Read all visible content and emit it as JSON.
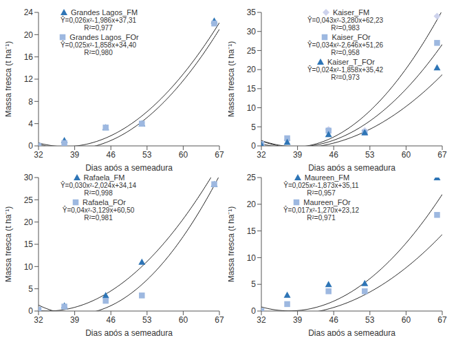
{
  "chart_data": [
    {
      "type": "scatter",
      "x_label": "Dias após a semeadura",
      "y_label": "Massa fresca (t ha⁻¹)",
      "xlim": [
        32,
        67
      ],
      "xticks": [
        32,
        39,
        46,
        53,
        60,
        67
      ],
      "ylim": [
        0,
        24
      ],
      "yticks": [
        0,
        4,
        8,
        12,
        16,
        20,
        24
      ],
      "legend": "upper left",
      "series": [
        {
          "name": "Grandes Lagos_FM",
          "color": "#2e75b6",
          "marker": "triangle",
          "x": [
            32,
            37,
            45,
            52,
            66
          ],
          "values": [
            0,
            1,
            3.3,
            4,
            22.5
          ],
          "equation": "Ŷ=0,026x²-1,986x+37,31",
          "r2": "R²=0,977",
          "fit": [
            0.026,
            -1.986,
            37.31
          ]
        },
        {
          "name": "Grandes Lagos_FOr",
          "color": "#9db8e0",
          "marker": "square",
          "x": [
            32,
            37,
            45,
            52,
            66
          ],
          "values": [
            0,
            0.5,
            3.3,
            4,
            22
          ],
          "equation": "Ŷ=0,025x²-1,858x+34,40",
          "r2": "R²=0,980",
          "fit": [
            0.025,
            -1.858,
            34.4
          ]
        }
      ]
    },
    {
      "type": "scatter",
      "x_label": "Dias após a semeadura",
      "y_label": "Massa fresca (t ha⁻¹)",
      "xlim": [
        32,
        67
      ],
      "xticks": [
        32,
        39,
        46,
        53,
        60,
        67
      ],
      "ylim": [
        0,
        35
      ],
      "yticks": [
        0,
        5,
        10,
        15,
        20,
        25,
        30,
        35
      ],
      "legend": "upper left",
      "series": [
        {
          "name": "Kaiser_FM",
          "color": "#cdd2ec",
          "marker": "diamond",
          "x": [
            32,
            37,
            45,
            52,
            66
          ],
          "values": [
            0.3,
            1.5,
            4.3,
            4,
            34
          ],
          "equation": "Ŷ=0,043x²-3,280x+62,23",
          "r2": "R²=0,983",
          "fit": [
            0.043,
            -3.28,
            62.23
          ]
        },
        {
          "name": "Kaiser_FOr",
          "color": "#9db8e0",
          "marker": "square",
          "x": [
            32,
            37,
            45,
            52,
            66
          ],
          "values": [
            0.5,
            2,
            4,
            3.5,
            27
          ],
          "equation": "Ŷ=0,034x²-2,646x+51,26",
          "r2": "R²=0,958",
          "fit": [
            0.034,
            -2.646,
            51.26
          ]
        },
        {
          "name": "Kaiser_T_FOr",
          "color": "#2e75b6",
          "marker": "triangle",
          "x": [
            32,
            37,
            45,
            52,
            66
          ],
          "values": [
            0.3,
            1,
            3,
            3.5,
            20.5
          ],
          "equation": "Ŷ=0,024x²-1,858x+35,42",
          "r2": "R²=0,973",
          "fit": [
            0.024,
            -1.858,
            35.42
          ]
        }
      ]
    },
    {
      "type": "scatter",
      "x_label": "Dias após a semeadura",
      "y_label": "Massa fresca (t ha⁻¹)",
      "xlim": [
        32,
        67
      ],
      "xticks": [
        32,
        39,
        46,
        53,
        60,
        67
      ],
      "ylim": [
        0,
        30
      ],
      "yticks": [
        0,
        5,
        10,
        15,
        20,
        25,
        30
      ],
      "legend": "upper left",
      "series": [
        {
          "name": "Rafaela_FM",
          "color": "#2e75b6",
          "marker": "triangle",
          "x": [
            32,
            37,
            45,
            52,
            66
          ],
          "values": [
            0,
            1.2,
            3.5,
            11,
            28.5
          ],
          "equation": "Ŷ=0,030x²-2,024x+34,14",
          "r2": "R²=0,998",
          "fit": [
            0.03,
            -2.024,
            34.14
          ]
        },
        {
          "name": "Rafaela_FOr",
          "color": "#9db8e0",
          "marker": "square",
          "x": [
            32,
            37,
            45,
            52,
            66
          ],
          "values": [
            0.3,
            1,
            2.3,
            3.5,
            28.5
          ],
          "equation": "Ŷ=0,04x²-3,129x+60,50",
          "r2": "R²=0,981",
          "fit": [
            0.04,
            -3.129,
            60.5
          ]
        }
      ]
    },
    {
      "type": "scatter",
      "x_label": "Dias após a semeadura",
      "y_label": "Massa fresca (t ha⁻¹)",
      "xlim": [
        32,
        67
      ],
      "xticks": [
        32,
        39,
        46,
        53,
        60,
        67
      ],
      "ylim": [
        0,
        25
      ],
      "yticks": [
        0,
        5,
        10,
        15,
        20,
        25
      ],
      "legend": "upper left",
      "series": [
        {
          "name": "Maureen_FM",
          "color": "#2e75b6",
          "marker": "triangle",
          "x": [
            32,
            37,
            45,
            52,
            66
          ],
          "values": [
            0,
            3,
            5,
            5.2,
            25
          ],
          "equation": "Ŷ=0,025x²-1,873x+35,11",
          "r2": "R²=0,957",
          "fit": [
            0.025,
            -1.873,
            35.11
          ]
        },
        {
          "name": "Maureen_FOr",
          "color": "#9db8e0",
          "marker": "square",
          "x": [
            32,
            37,
            45,
            52,
            66
          ],
          "values": [
            0,
            1.3,
            3.7,
            3.7,
            18
          ],
          "equation": "Ŷ=0,017x²-1,270x+23,12",
          "r2": "R²=0,971",
          "fit": [
            0.017,
            -1.27,
            23.12
          ]
        }
      ]
    }
  ]
}
